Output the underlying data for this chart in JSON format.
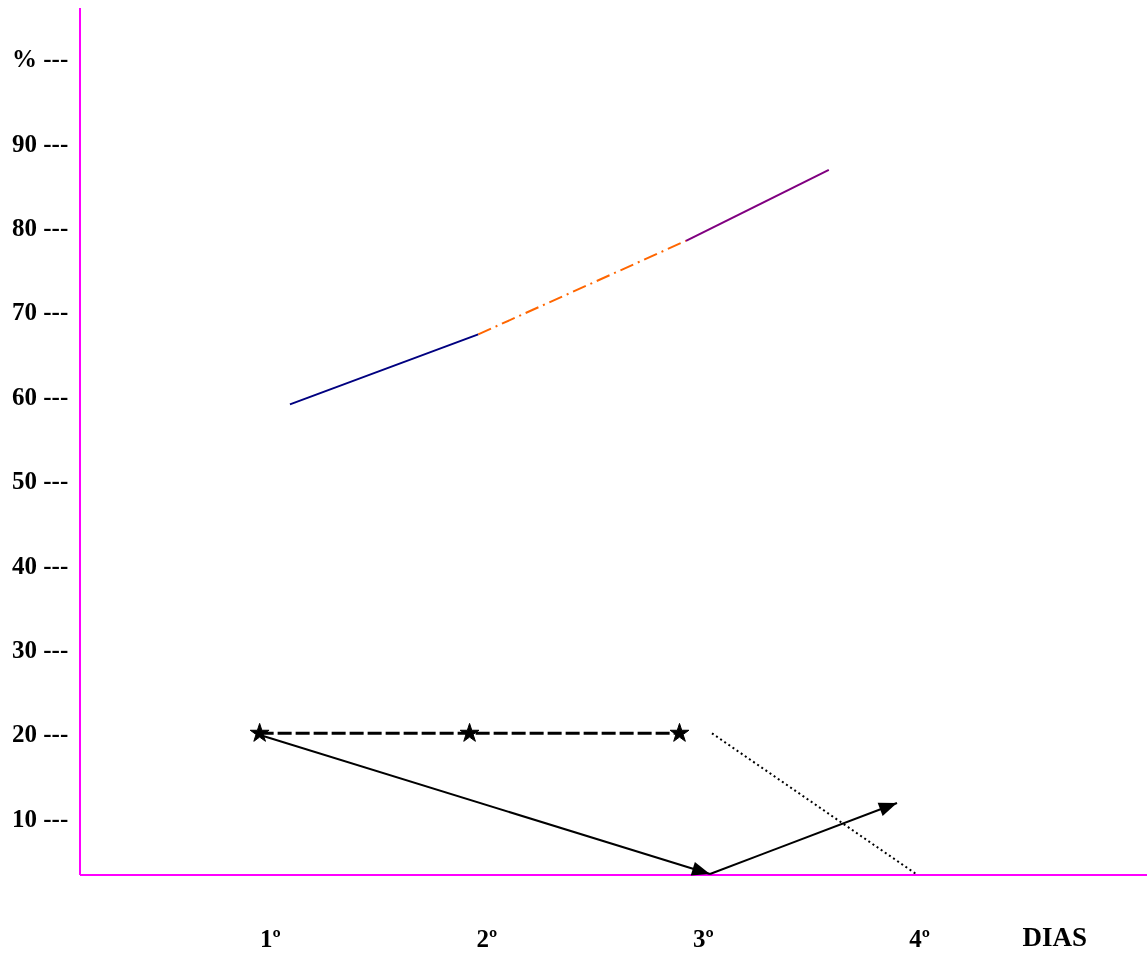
{
  "chart_data": {
    "type": "line",
    "xlabel": "DIAS",
    "xlim": [
      0.12,
      5.05
    ],
    "xticks": [
      {
        "value": 1,
        "label": "1º"
      },
      {
        "value": 2,
        "label": "2º"
      },
      {
        "value": 3,
        "label": "3º"
      },
      {
        "value": 4,
        "label": "4º"
      }
    ],
    "ylim": [
      3.2,
      106
    ],
    "yticks": [
      {
        "value": 10,
        "label": "10 ---"
      },
      {
        "value": 20,
        "label": "20 ---"
      },
      {
        "value": 30,
        "label": "30 ---"
      },
      {
        "value": 40,
        "label": "40 ---"
      },
      {
        "value": 50,
        "label": "50 ---"
      },
      {
        "value": 60,
        "label": "60 ---"
      },
      {
        "value": 70,
        "label": "70 ---"
      },
      {
        "value": 80,
        "label": "80 ---"
      },
      {
        "value": 90,
        "label": "90 ---"
      },
      {
        "value": 100,
        "label": "%  ---"
      }
    ],
    "series": [
      {
        "color": "#000080",
        "x": [
          1.09,
          1.96
        ],
        "values": [
          59,
          67.3
        ],
        "line_style": "solid",
        "marker": "none"
      },
      {
        "color": "#ff6600",
        "x": [
          1.96,
          2.92
        ],
        "values": [
          67.3,
          78.4
        ],
        "line_style": "dashed",
        "marker": "none"
      },
      {
        "color": "#800080",
        "x": [
          2.92,
          3.58
        ],
        "values": [
          78.4,
          86.8
        ],
        "line_style": "solid",
        "marker": "none"
      },
      {
        "color": "#000000",
        "x": [
          0.95,
          1.92,
          2.89
        ],
        "values": [
          20,
          20,
          20
        ],
        "line_style": "dashed",
        "marker": "star"
      },
      {
        "color": "#000000",
        "x": [
          3.04,
          3.99
        ],
        "values": [
          20,
          3.2
        ],
        "line_style": "dotted",
        "marker": "none"
      }
    ]
  }
}
